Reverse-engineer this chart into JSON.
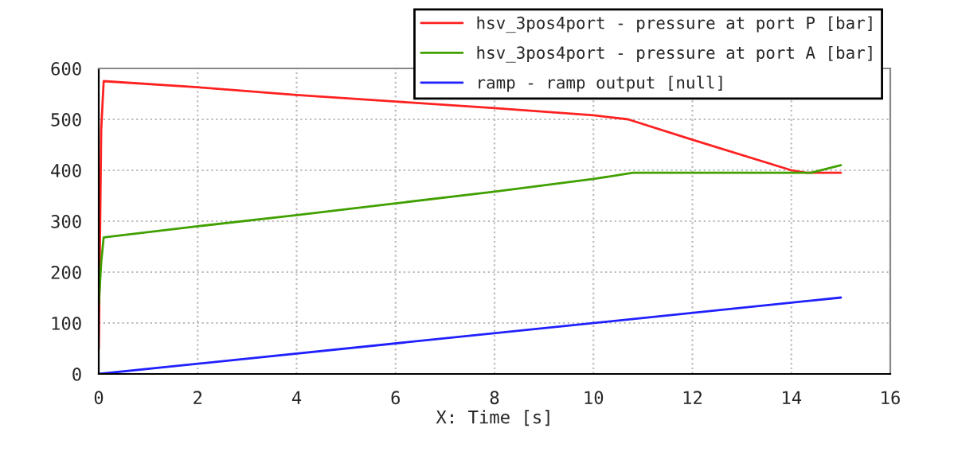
{
  "chart_data": {
    "type": "line",
    "xlabel": "X: Time [s]",
    "xlim": [
      0,
      16
    ],
    "xticks": [
      0,
      2,
      4,
      6,
      8,
      10,
      12,
      14,
      16
    ],
    "ylim": [
      0,
      600
    ],
    "yticks": [
      0,
      100,
      200,
      300,
      400,
      500,
      600
    ],
    "grid": true,
    "legend": "top right",
    "line_style": "solid",
    "marker": "none",
    "series": [
      {
        "name": "hsv_3pos4port - pressure at port P [bar]",
        "color": "#ff2020",
        "x": [
          0,
          0.05,
          0.1,
          2,
          4,
          6,
          8,
          10,
          10.7,
          12,
          14,
          14.3,
          15
        ],
        "values": [
          50,
          480,
          575,
          563,
          548,
          535,
          522,
          508,
          500,
          460,
          400,
          395,
          395
        ]
      },
      {
        "name": "hsv_3pos4port - pressure at port A [bar]",
        "color": "#40a000",
        "x": [
          0,
          0.05,
          0.1,
          2,
          4,
          6,
          8,
          10,
          10.8,
          14,
          14.4,
          15
        ],
        "values": [
          135,
          220,
          268,
          290,
          312,
          335,
          358,
          383,
          395,
          395,
          395,
          410
        ]
      },
      {
        "name": "ramp - ramp output [null]",
        "color": "#2020ff",
        "x": [
          0,
          15
        ],
        "values": [
          0,
          150
        ]
      }
    ]
  }
}
